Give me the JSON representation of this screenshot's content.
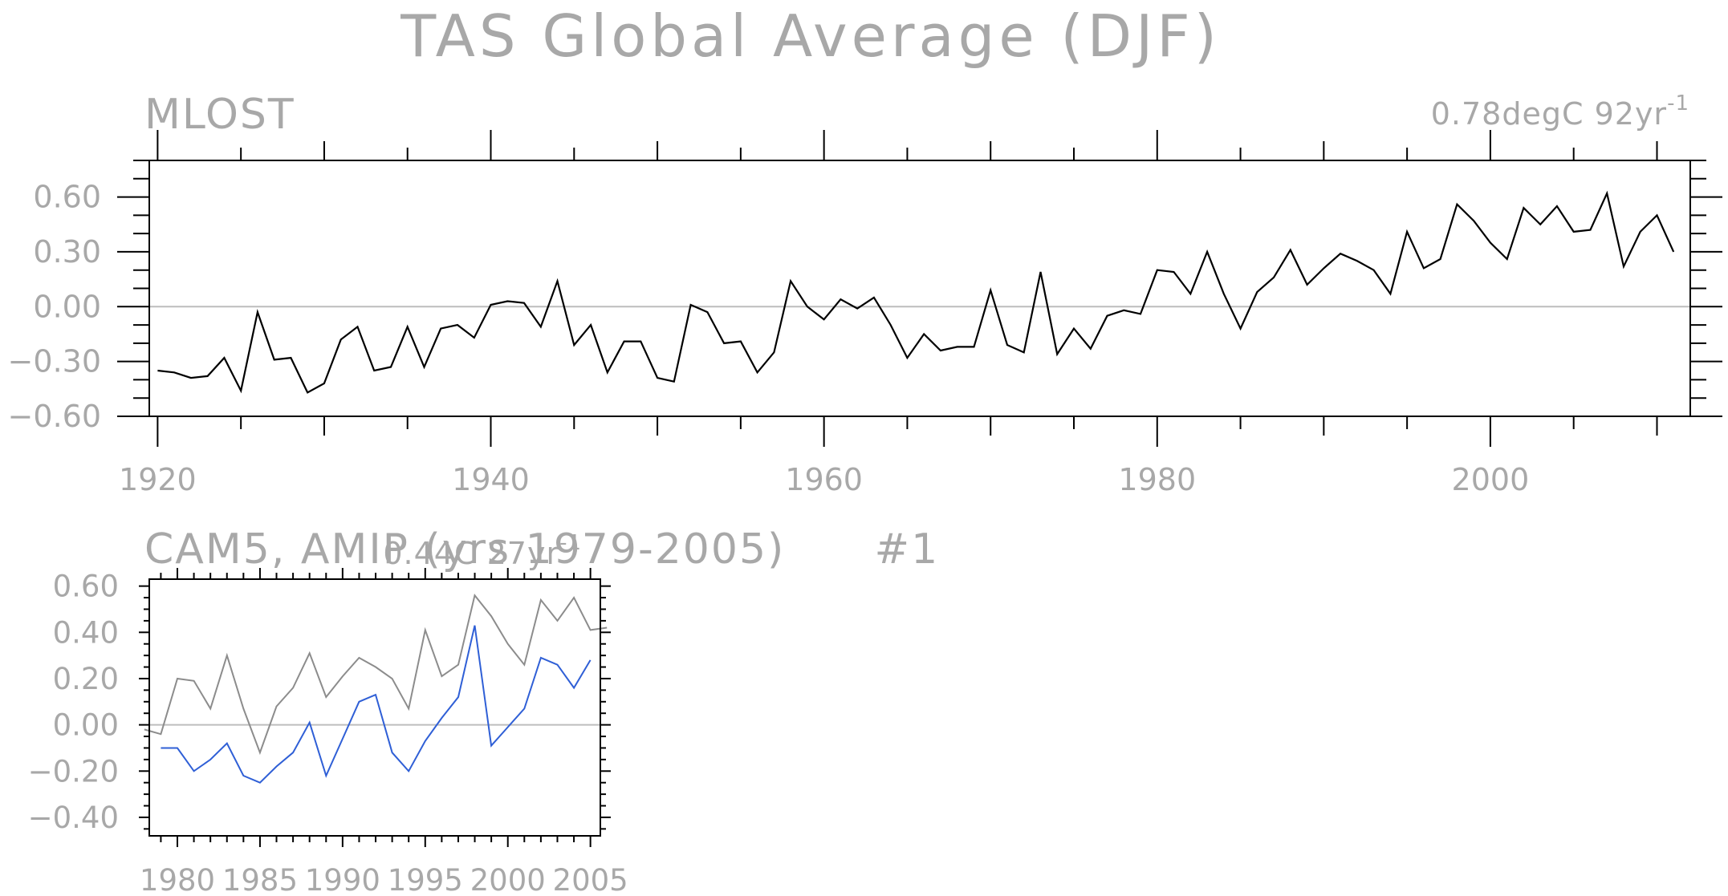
{
  "title": "TAS Global Average (DJF)",
  "colors": {
    "text": "#a8a8a8",
    "obs_line": "#000000",
    "obs_overlay": "#8c8c8c",
    "model_line": "#2f5fd6",
    "zero_line": "#bdbdbd",
    "axes": "#000000"
  },
  "chart_data": [
    {
      "type": "line",
      "title": "MLOST",
      "trend_value": "0.78degC 92yr",
      "trend_exponent": "-1",
      "xlim": [
        1919.5,
        2012
      ],
      "ylim": [
        -0.6,
        0.8
      ],
      "x_ticks": [
        1920,
        1940,
        1960,
        1980,
        2000
      ],
      "x_tick_labels": [
        "1920",
        "1940",
        "1960",
        "1980",
        "2000"
      ],
      "y_ticks": [
        -0.6,
        -0.3,
        0.0,
        0.3,
        0.6
      ],
      "y_tick_labels": [
        "−0.60",
        "−0.30",
        "0.00",
        "0.30",
        "0.60"
      ],
      "zero_line": 0,
      "x_start": 1920,
      "series": [
        {
          "color": "#000000",
          "values": [
            -0.35,
            -0.36,
            -0.39,
            -0.38,
            -0.28,
            -0.46,
            -0.03,
            -0.29,
            -0.28,
            -0.47,
            -0.42,
            -0.18,
            -0.11,
            -0.35,
            -0.33,
            -0.11,
            -0.33,
            -0.12,
            -0.1,
            -0.17,
            0.01,
            0.03,
            0.02,
            -0.11,
            0.14,
            -0.21,
            -0.1,
            -0.36,
            -0.19,
            -0.19,
            -0.39,
            -0.41,
            0.01,
            -0.03,
            -0.2,
            -0.19,
            -0.36,
            -0.25,
            0.14,
            0.0,
            -0.07,
            0.04,
            -0.01,
            0.05,
            -0.1,
            -0.28,
            -0.15,
            -0.24,
            -0.22,
            -0.22,
            0.09,
            -0.21,
            -0.25,
            0.19,
            -0.26,
            -0.12,
            -0.23,
            -0.05,
            -0.02,
            -0.04,
            0.2,
            0.19,
            0.07,
            0.3,
            0.07,
            -0.12,
            0.08,
            0.16,
            0.31,
            0.12,
            0.21,
            0.29,
            0.25,
            0.2,
            0.07,
            0.41,
            0.21,
            0.26,
            0.56,
            0.47,
            0.35,
            0.26,
            0.54,
            0.45,
            0.55,
            0.41,
            0.42,
            0.62,
            0.22,
            0.41,
            0.5,
            0.3
          ]
        }
      ]
    },
    {
      "type": "line",
      "title": "CAM5, AMIP (yrs 1979-2005)      #1",
      "trend_value": "0.44C 27yr",
      "trend_exponent": "-1",
      "xlim": [
        1978.3,
        2005.6
      ],
      "ylim": [
        -0.48,
        0.63
      ],
      "x_ticks": [
        1980,
        1985,
        1990,
        1995,
        2000,
        2005
      ],
      "x_tick_labels": [
        "1980",
        "1985",
        "1990",
        "1995",
        "2000",
        "2005"
      ],
      "y_ticks": [
        -0.4,
        -0.2,
        0.0,
        0.2,
        0.4,
        0.6
      ],
      "y_tick_labels": [
        "−0.40",
        "−0.20",
        "0.00",
        "0.20",
        "0.40",
        "0.60"
      ],
      "zero_line": 0,
      "series": [
        {
          "color": "#8c8c8c",
          "x_start": 1978,
          "values": [
            -0.02,
            -0.04,
            0.2,
            0.19,
            0.07,
            0.3,
            0.07,
            -0.12,
            0.08,
            0.16,
            0.31,
            0.12,
            0.21,
            0.29,
            0.25,
            0.2,
            0.07,
            0.41,
            0.21,
            0.26,
            0.56,
            0.47,
            0.35,
            0.26,
            0.54,
            0.45,
            0.55,
            0.41,
            0.42
          ]
        },
        {
          "color": "#2f5fd6",
          "x_start": 1979,
          "values": [
            -0.1,
            -0.1,
            -0.2,
            -0.15,
            -0.08,
            -0.22,
            -0.25,
            -0.18,
            -0.12,
            0.01,
            -0.22,
            -0.06,
            0.1,
            0.13,
            -0.12,
            -0.2,
            -0.07,
            0.03,
            0.12,
            0.43,
            -0.09,
            -0.01,
            0.07,
            0.29,
            0.26,
            0.16,
            0.28
          ]
        }
      ]
    }
  ]
}
